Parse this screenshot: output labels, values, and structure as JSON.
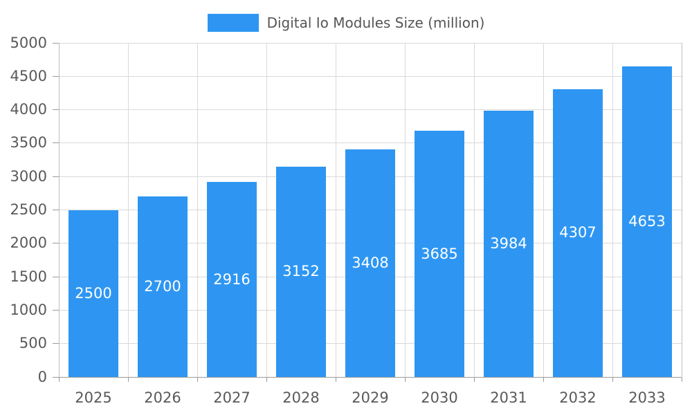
{
  "chart_data": {
    "type": "bar",
    "title": "Digital Io Modules Size (million)",
    "categories": [
      "2025",
      "2026",
      "2027",
      "2028",
      "2029",
      "2030",
      "2031",
      "2032",
      "2033"
    ],
    "values": [
      2500,
      2700,
      2916,
      3152,
      3408,
      3685,
      3984,
      4307,
      4653
    ],
    "xlabel": "",
    "ylabel": "",
    "ylim": [
      0,
      5000
    ],
    "ytick_step": 500,
    "ytick_labels": [
      "0",
      "500",
      "1000",
      "1500",
      "2000",
      "2500",
      "3000",
      "3500",
      "4000",
      "4500",
      "5000"
    ],
    "grid": true,
    "legend_position": "top-center",
    "bar_color": "#2E96F2",
    "value_label_color": "#ffffff",
    "axis_text_color": "#595959",
    "grid_color": "#d9d9d9"
  }
}
